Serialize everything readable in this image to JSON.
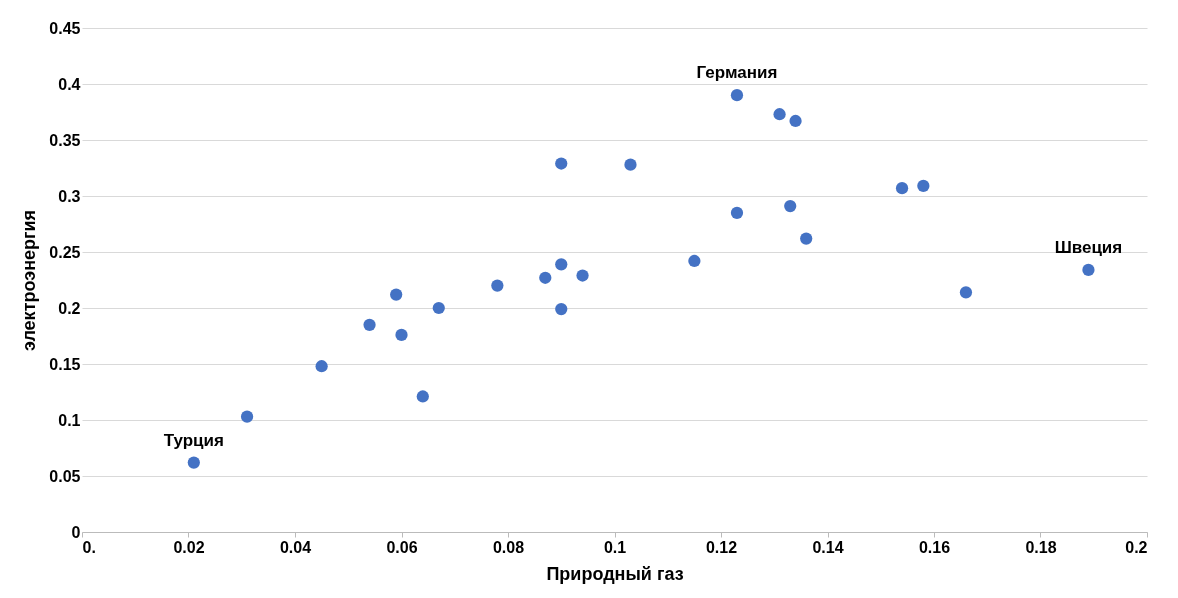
{
  "chart_data": {
    "type": "scatter",
    "xlabel": "Природный газ",
    "ylabel": "электроэнергия",
    "x": [
      0.021,
      0.031,
      0.045,
      0.054,
      0.059,
      0.06,
      0.064,
      0.067,
      0.078,
      0.087,
      0.09,
      0.09,
      0.09,
      0.094,
      0.103,
      0.115,
      0.123,
      0.123,
      0.131,
      0.133,
      0.134,
      0.136,
      0.154,
      0.158,
      0.166,
      0.189
    ],
    "series": [
      {
        "color": "#4472c4",
        "values": [
          0.062,
          0.103,
          0.148,
          0.185,
          0.212,
          0.176,
          0.121,
          0.2,
          0.22,
          0.227,
          0.239,
          0.329,
          0.199,
          0.229,
          0.328,
          0.242,
          0.285,
          0.39,
          0.373,
          0.291,
          0.367,
          0.262,
          0.307,
          0.309,
          0.214,
          0.234
        ]
      }
    ],
    "xlim": [
      0,
      0.2
    ],
    "ylim": [
      0,
      0.45
    ],
    "xticks": [
      {
        "value": 0,
        "label": "0."
      },
      0.02,
      0.04,
      0.06,
      0.08,
      0.1,
      0.12,
      0.14,
      0.16,
      0.18,
      0.2
    ],
    "yticks": [
      0,
      0.05,
      0.1,
      0.15,
      0.2,
      0.25,
      0.3,
      0.35,
      0.4,
      0.45
    ],
    "grid": "y",
    "marker": "circle",
    "annotations": [
      {
        "text": "Германия",
        "x": 0.123,
        "y": 0.39
      },
      {
        "text": "Турция",
        "x": 0.021,
        "y": 0.062
      },
      {
        "text": "Швеция",
        "x": 0.189,
        "y": 0.234
      }
    ]
  }
}
